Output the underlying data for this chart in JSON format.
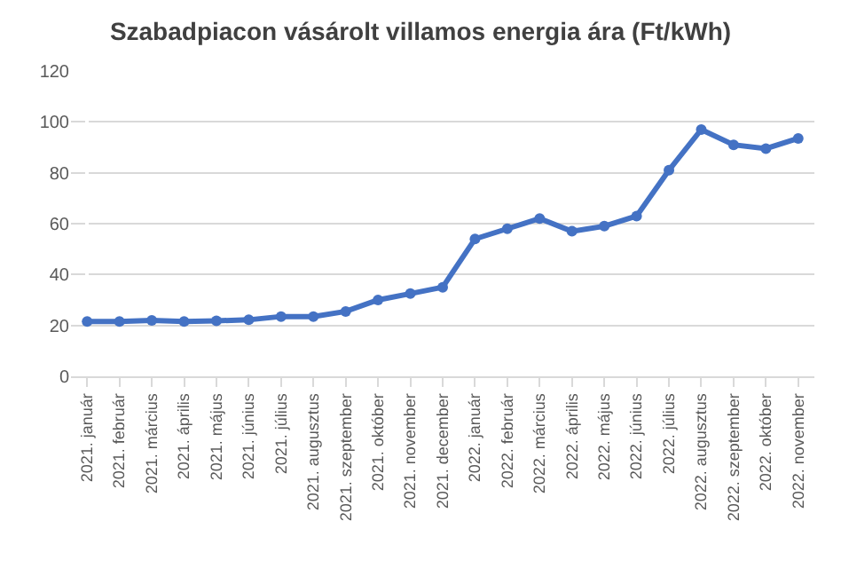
{
  "chart_data": {
    "type": "line",
    "title": "Szabadpiacon vásárolt villamos energia ára (Ft/kWh)",
    "categories": [
      "2021. január",
      "2021. február",
      "2021. március",
      "2021. április",
      "2021. május",
      "2021. június",
      "2021. július",
      "2021. augusztus",
      "2021. szeptember",
      "2021. október",
      "2021. november",
      "2021. december",
      "2022. január",
      "2022. február",
      "2022. március",
      "2022. április",
      "2022. május",
      "2022. június",
      "2022. július",
      "2022. augusztus",
      "2022. szeptember",
      "2022. október",
      "2022. november"
    ],
    "series": [
      {
        "color": "#4472c4",
        "values": [
          21.5,
          21.5,
          22,
          21.5,
          21.8,
          22.2,
          23.5,
          23.5,
          25.5,
          30,
          32.5,
          35,
          54,
          58,
          62,
          57,
          59,
          63,
          81,
          97,
          91,
          89.5,
          93.5
        ]
      }
    ],
    "ylim": [
      0,
      120
    ],
    "yticks": [
      0,
      20,
      40,
      60,
      80,
      100,
      120
    ],
    "grid": "y",
    "marker": "circle",
    "line_style": "solid"
  }
}
